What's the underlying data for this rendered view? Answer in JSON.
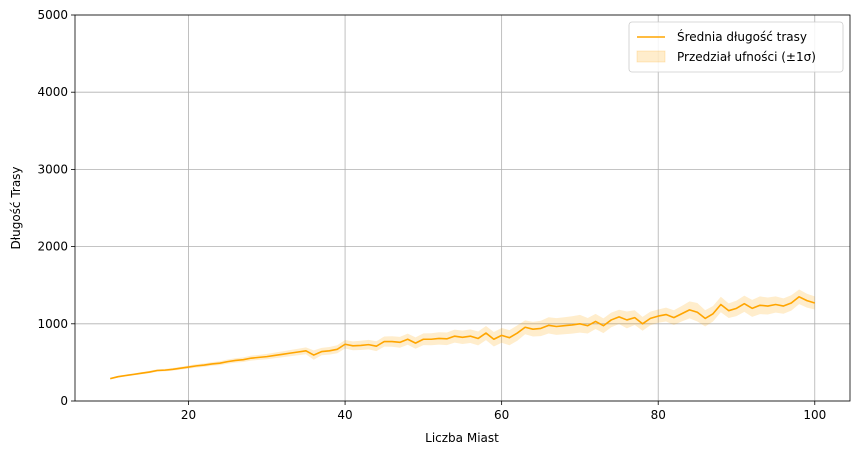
{
  "chart_data": {
    "type": "line",
    "title": "",
    "xlabel": "Liczba Miast",
    "ylabel": "Długość Trasy",
    "xlim": [
      5.5,
      104.5
    ],
    "ylim": [
      0,
      5000
    ],
    "xticks": [
      20,
      40,
      60,
      80,
      100
    ],
    "yticks": [
      0,
      1000,
      2000,
      3000,
      4000,
      5000
    ],
    "grid": true,
    "legend_position": "top-right",
    "line_color": "#FFA500",
    "band_color": "#FFA500",
    "series": [
      {
        "name": "Średnia długość trasy",
        "kind": "mean-line",
        "x": [
          10,
          11,
          12,
          13,
          14,
          15,
          16,
          17,
          18,
          19,
          20,
          21,
          22,
          23,
          24,
          25,
          26,
          27,
          28,
          29,
          30,
          31,
          32,
          33,
          34,
          35,
          36,
          37,
          38,
          39,
          40,
          41,
          42,
          43,
          44,
          45,
          46,
          47,
          48,
          49,
          50,
          51,
          52,
          53,
          54,
          55,
          56,
          57,
          58,
          59,
          60,
          61,
          62,
          63,
          64,
          65,
          66,
          67,
          68,
          69,
          70,
          71,
          72,
          73,
          74,
          75,
          76,
          77,
          78,
          79,
          80,
          81,
          82,
          83,
          84,
          85,
          86,
          87,
          88,
          89,
          90,
          91,
          92,
          93,
          94,
          95,
          96,
          97,
          98,
          99,
          100
        ],
        "y": [
          290,
          315,
          330,
          345,
          360,
          375,
          395,
          400,
          410,
          425,
          440,
          455,
          465,
          480,
          490,
          510,
          525,
          535,
          555,
          565,
          575,
          590,
          605,
          620,
          635,
          650,
          595,
          640,
          650,
          670,
          735,
          715,
          720,
          730,
          710,
          770,
          770,
          760,
          800,
          750,
          800,
          800,
          810,
          805,
          840,
          825,
          840,
          810,
          880,
          800,
          850,
          820,
          880,
          955,
          930,
          940,
          980,
          965,
          975,
          985,
          1000,
          975,
          1030,
          975,
          1050,
          1090,
          1050,
          1080,
          1000,
          1070,
          1100,
          1120,
          1080,
          1130,
          1180,
          1150,
          1070,
          1130,
          1250,
          1170,
          1200,
          1260,
          1200,
          1240,
          1230,
          1250,
          1230,
          1270,
          1350,
          1300,
          1270
        ]
      },
      {
        "name": "Przedział ufności (±1σ)",
        "kind": "band",
        "x": [
          10,
          11,
          12,
          13,
          14,
          15,
          16,
          17,
          18,
          19,
          20,
          21,
          22,
          23,
          24,
          25,
          26,
          27,
          28,
          29,
          30,
          31,
          32,
          33,
          34,
          35,
          36,
          37,
          38,
          39,
          40,
          41,
          42,
          43,
          44,
          45,
          46,
          47,
          48,
          49,
          50,
          51,
          52,
          53,
          54,
          55,
          56,
          57,
          58,
          59,
          60,
          61,
          62,
          63,
          64,
          65,
          66,
          67,
          68,
          69,
          70,
          71,
          72,
          73,
          74,
          75,
          76,
          77,
          78,
          79,
          80,
          81,
          82,
          83,
          84,
          85,
          86,
          87,
          88,
          89,
          90,
          91,
          92,
          93,
          94,
          95,
          96,
          97,
          98,
          99,
          100
        ],
        "sigma": [
          12,
          12,
          13,
          13,
          14,
          15,
          16,
          16,
          17,
          18,
          20,
          22,
          23,
          24,
          25,
          27,
          28,
          30,
          32,
          33,
          35,
          37,
          38,
          40,
          42,
          45,
          60,
          48,
          50,
          52,
          55,
          58,
          60,
          62,
          64,
          66,
          68,
          70,
          72,
          74,
          76,
          78,
          80,
          82,
          84,
          86,
          88,
          90,
          92,
          94,
          96,
          98,
          100,
          90,
          95,
          100,
          105,
          108,
          110,
          112,
          115,
          100,
          98,
          96,
          94,
          92,
          110,
          95,
          90,
          88,
          86,
          90,
          95,
          100,
          110,
          120,
          105,
          100,
          100,
          95,
          100,
          105,
          110,
          115,
          110,
          105,
          100,
          100,
          95,
          90,
          85
        ]
      }
    ]
  }
}
